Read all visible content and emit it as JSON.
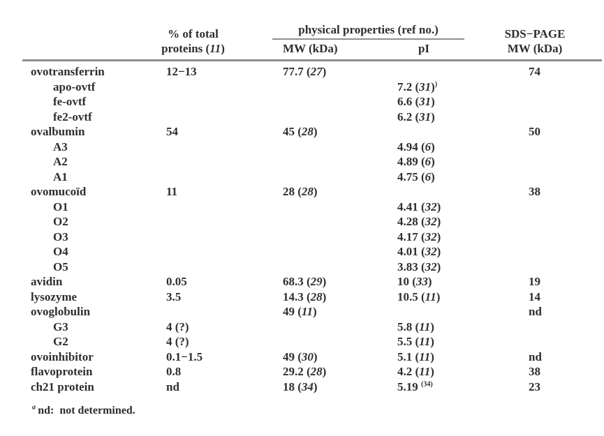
{
  "table": {
    "headers": {
      "pct_line1": "% of total",
      "pct_line2": "proteins (*11*)",
      "group": "physical properties (ref no.)",
      "mw": "MW (kDa)",
      "pi": "pI",
      "sds_line1": "SDS−PAGE",
      "sds_line2": "MW (kDa)"
    },
    "rows": [
      {
        "name": "ovotransferrin",
        "indent": 0,
        "pct": "12−13",
        "mw": "77.7 (*27*)",
        "pi": "",
        "sds": "74"
      },
      {
        "name": "apo-ovtf",
        "indent": 1,
        "pct": "",
        "mw": "",
        "pi": "7.2 (*31*)^)^",
        "sds": ""
      },
      {
        "name": "fe-ovtf",
        "indent": 1,
        "pct": "",
        "mw": "",
        "pi": "6.6 (*31*)",
        "sds": ""
      },
      {
        "name": "fe2-ovtf",
        "indent": 1,
        "pct": "",
        "mw": "",
        "pi": "6.2 (*31*)",
        "sds": ""
      },
      {
        "name": "ovalbumin",
        "indent": 0,
        "pct": "54",
        "mw": "45 (*28*)",
        "pi": "",
        "sds": "50"
      },
      {
        "name": "A3",
        "indent": 1,
        "pct": "",
        "mw": "",
        "pi": "4.94 (*6*)",
        "sds": ""
      },
      {
        "name": "A2",
        "indent": 1,
        "pct": "",
        "mw": "",
        "pi": "4.89 (*6*)",
        "sds": ""
      },
      {
        "name": "A1",
        "indent": 1,
        "pct": "",
        "mw": "",
        "pi": "4.75 (*6*)",
        "sds": ""
      },
      {
        "name": "ovomucoïd",
        "indent": 0,
        "pct": "11",
        "mw": "28 (*28*)",
        "pi": "",
        "sds": "38"
      },
      {
        "name": "O1",
        "indent": 1,
        "pct": "",
        "mw": "",
        "pi": "4.41 (*32*)",
        "sds": ""
      },
      {
        "name": "O2",
        "indent": 1,
        "pct": "",
        "mw": "",
        "pi": "4.28 (*32*)",
        "sds": ""
      },
      {
        "name": "O3",
        "indent": 1,
        "pct": "",
        "mw": "",
        "pi": "4.17 (*32*)",
        "sds": ""
      },
      {
        "name": "O4",
        "indent": 1,
        "pct": "",
        "mw": "",
        "pi": "4.01 (*32*)",
        "sds": ""
      },
      {
        "name": "O5",
        "indent": 1,
        "pct": "",
        "mw": "",
        "pi": "3.83 (*32*)",
        "sds": ""
      },
      {
        "name": "avidin",
        "indent": 0,
        "pct": "0.05",
        "mw": "68.3 (*29*)",
        "pi": "10 (*33*)",
        "sds": "19"
      },
      {
        "name": "lysozyme",
        "indent": 0,
        "pct": "3.5",
        "mw": "14.3 (*28*)",
        "pi": "10.5 (*11*)",
        "sds": "14"
      },
      {
        "name": "ovoglobulin",
        "indent": 0,
        "pct": "",
        "mw": "49 (*11*)",
        "pi": "",
        "sds": "nd"
      },
      {
        "name": "G3",
        "indent": 1,
        "pct": "4 (?)",
        "mw": "",
        "pi": "5.8 (*11*)",
        "sds": ""
      },
      {
        "name": "G2",
        "indent": 1,
        "pct": "4 (?)",
        "mw": "",
        "pi": "5.5 (*11*)",
        "sds": ""
      },
      {
        "name": "ovoinhibitor",
        "indent": 0,
        "pct": "0.1−1.5",
        "mw": "49 (*30*)",
        "pi": "5.1 (*11*)",
        "sds": "nd"
      },
      {
        "name": "flavoprotein",
        "indent": 0,
        "pct": "0.8",
        "mw": "29.2 (*28*)",
        "pi": "4.2 (*11*)",
        "sds": "38"
      },
      {
        "name": "ch21 protein",
        "indent": 0,
        "pct": "nd",
        "mw": "18 (*34*)",
        "pi": "5.19 ^(34)^",
        "sds": "23"
      }
    ],
    "footnote": "^*a*^ nd:  not determined."
  },
  "colors": {
    "text": "#2e2e2e",
    "rule": "#8f8f8f"
  }
}
